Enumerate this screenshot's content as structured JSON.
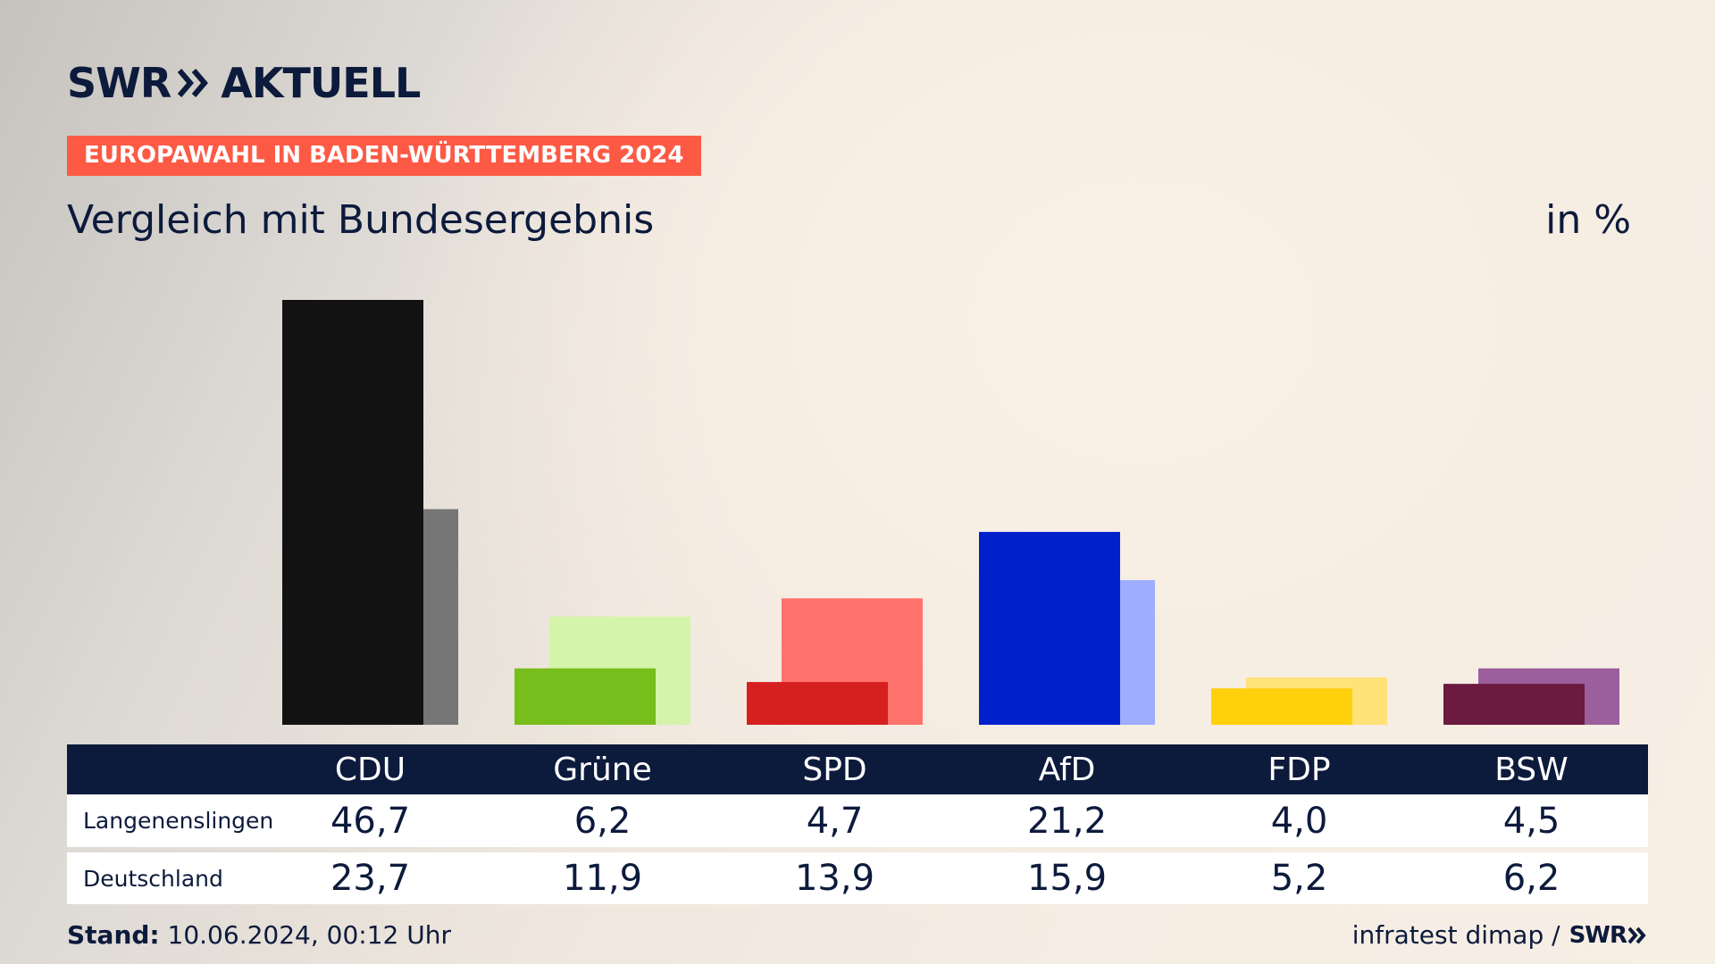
{
  "brand": {
    "name": "SWR",
    "section": "AKTUELL"
  },
  "badge": "EUROPAWAHL IN BADEN-WÜRTTEMBERG 2024",
  "subtitle": "Vergleich mit Bundesergebnis",
  "unit": "in %",
  "table": {
    "row_labels": [
      "Langenenslingen",
      "Deutschland"
    ]
  },
  "footer": {
    "stand_label": "Stand:",
    "stand_value": "10.06.2024, 00:12 Uhr",
    "source": "infratest dimap /",
    "source_logo": "SWR"
  },
  "chart_data": {
    "type": "bar",
    "categories": [
      "CDU",
      "Grüne",
      "SPD",
      "AfD",
      "FDP",
      "BSW"
    ],
    "series": [
      {
        "name": "Langenenslingen",
        "values": [
          46.7,
          6.2,
          4.7,
          21.2,
          4.0,
          4.5
        ]
      },
      {
        "name": "Deutschland",
        "values": [
          23.7,
          11.9,
          13.9,
          15.9,
          5.2,
          6.2
        ]
      }
    ],
    "colors": {
      "primary": [
        "#121212",
        "#77bd1c",
        "#d61f1f",
        "#0020cc",
        "#ffd00c",
        "#6b1a40"
      ],
      "secondary": [
        "#767676",
        "#d4f4aa",
        "#ff726c",
        "#9fadff",
        "#ffe278",
        "#9b5f9e"
      ]
    },
    "ylim": [
      0,
      46.7
    ]
  }
}
